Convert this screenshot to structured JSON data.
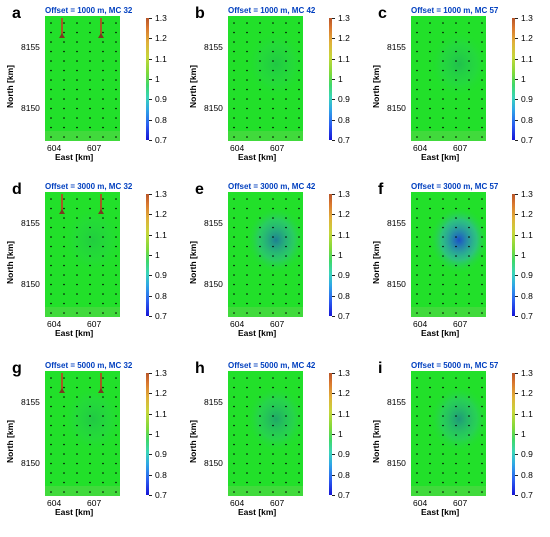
{
  "figure": {
    "north_label": "North [km]",
    "east_label": "East [km]",
    "north_ticks": [
      "8155",
      "8150"
    ],
    "east_ticks": [
      "604",
      "607"
    ],
    "colorbar_ticks": [
      "1.3",
      "1.2",
      "1.1",
      "1",
      "0.9",
      "0.8",
      "0.7"
    ],
    "colors": {
      "background": "#22e02a",
      "anomaly": "#1a40d8",
      "title": "#003fbf"
    },
    "panels": [
      {
        "letter": "a",
        "title": "Offset = 1000 m, MC 32",
        "anomaly_strength": 0.0,
        "antennas": true
      },
      {
        "letter": "b",
        "title": "Offset = 1000 m, MC 42",
        "anomaly_strength": 0.15,
        "antennas": false
      },
      {
        "letter": "c",
        "title": "Offset = 1000 m, MC 57",
        "anomaly_strength": 0.2,
        "antennas": false
      },
      {
        "letter": "d",
        "title": "Offset = 3000 m, MC 32",
        "anomaly_strength": 0.12,
        "antennas": true
      },
      {
        "letter": "e",
        "title": "Offset = 3000 m, MC 42",
        "anomaly_strength": 0.6,
        "antennas": false
      },
      {
        "letter": "f",
        "title": "Offset = 3000 m, MC 57",
        "anomaly_strength": 0.9,
        "antennas": false
      },
      {
        "letter": "g",
        "title": "Offset = 5000 m, MC 32",
        "anomaly_strength": 0.15,
        "antennas": true
      },
      {
        "letter": "h",
        "title": "Offset = 5000 m, MC 42",
        "anomaly_strength": 0.35,
        "antennas": false
      },
      {
        "letter": "i",
        "title": "Offset = 5000 m, MC 57",
        "anomaly_strength": 0.45,
        "antennas": false
      }
    ]
  }
}
